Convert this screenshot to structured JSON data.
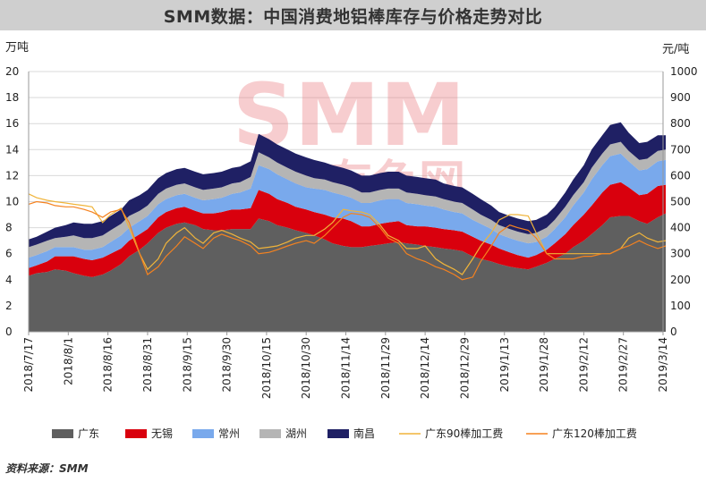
{
  "title": "SMM数据：中国消费地铝棒库存与价格走势对比",
  "source": "资料来源：SMM",
  "watermark": {
    "brand": "SMM",
    "cn": "上海有色网"
  },
  "chart_data": {
    "type": "area",
    "stacked": true,
    "left_axis": {
      "unit": "万吨",
      "min": 0,
      "max": 20,
      "step": 2
    },
    "right_axis": {
      "unit": "元/吨",
      "min": 0,
      "max": 1000,
      "step": 100
    },
    "x_tick_labels": [
      "2018/7/17",
      "2018/8/1",
      "2018/8/16",
      "2018/8/31",
      "2018/9/15",
      "2018/9/30",
      "2018/10/15",
      "2018/10/30",
      "2018/11/14",
      "2018/11/29",
      "2018/12/14",
      "2018/12/29",
      "2019/1/13",
      "2019/1/28",
      "2019/2/12",
      "2019/2/27",
      "2019/3/14"
    ],
    "x_dates": [
      "2018/7/17",
      "2018/7/20",
      "2018/7/24",
      "2018/7/27",
      "2018/7/31",
      "2018/8/3",
      "2018/8/7",
      "2018/8/10",
      "2018/8/14",
      "2018/8/17",
      "2018/8/21",
      "2018/8/24",
      "2018/8/28",
      "2018/8/31",
      "2018/9/4",
      "2018/9/7",
      "2018/9/11",
      "2018/9/14",
      "2018/9/18",
      "2018/9/21",
      "2018/9/25",
      "2018/9/28",
      "2018/10/2",
      "2018/10/5",
      "2018/10/9",
      "2018/10/12",
      "2018/10/16",
      "2018/10/19",
      "2018/10/23",
      "2018/10/26",
      "2018/10/30",
      "2018/11/2",
      "2018/11/6",
      "2018/11/9",
      "2018/11/13",
      "2018/11/16",
      "2018/11/20",
      "2018/11/23",
      "2018/11/27",
      "2018/11/30",
      "2018/12/4",
      "2018/12/7",
      "2018/12/11",
      "2018/12/14",
      "2018/12/18",
      "2018/12/21",
      "2018/12/25",
      "2018/12/28",
      "2019/1/1",
      "2019/1/4",
      "2019/1/8",
      "2019/1/11",
      "2019/1/15",
      "2019/1/18",
      "2019/1/22",
      "2019/1/25",
      "2019/1/29",
      "2019/2/1",
      "2019/2/5",
      "2019/2/8",
      "2019/2/12",
      "2019/2/15",
      "2019/2/19",
      "2019/2/22",
      "2019/2/26",
      "2019/3/1",
      "2019/3/5",
      "2019/3/8",
      "2019/3/12",
      "2019/3/15"
    ],
    "series": [
      {
        "name": "广东",
        "kind": "area",
        "axis": "left",
        "color": "#5f5f5f",
        "values": [
          4.3,
          4.5,
          4.6,
          4.8,
          4.7,
          4.5,
          4.3,
          4.2,
          4.4,
          4.7,
          5.2,
          5.8,
          6.3,
          6.8,
          7.6,
          8.0,
          8.3,
          8.4,
          8.2,
          7.9,
          7.8,
          7.8,
          7.9,
          7.9,
          7.9,
          8.7,
          8.5,
          8.2,
          8.0,
          7.8,
          7.6,
          7.4,
          7.1,
          6.8,
          6.6,
          6.5,
          6.5,
          6.6,
          6.7,
          6.8,
          6.9,
          6.8,
          6.7,
          6.6,
          6.5,
          6.4,
          6.3,
          6.2,
          5.8,
          5.6,
          5.4,
          5.2,
          5.0,
          4.9,
          4.8,
          5.0,
          5.3,
          5.6,
          6.0,
          6.5,
          7.0,
          7.5,
          8.2,
          8.8,
          8.9,
          8.9,
          8.5,
          8.3,
          8.8,
          9.1
        ]
      },
      {
        "name": "无锡",
        "kind": "area",
        "axis": "left",
        "color": "#d9000d",
        "values": [
          0.6,
          0.6,
          0.8,
          1.0,
          1.1,
          1.3,
          1.3,
          1.3,
          1.3,
          1.3,
          1.2,
          1.2,
          1.2,
          1.1,
          1.2,
          1.2,
          1.2,
          1.2,
          1.1,
          1.2,
          1.3,
          1.4,
          1.5,
          1.5,
          1.6,
          2.2,
          2.1,
          2.0,
          1.9,
          1.8,
          1.8,
          1.8,
          1.9,
          2.0,
          2.1,
          2.0,
          1.6,
          1.5,
          1.6,
          1.6,
          1.6,
          1.4,
          1.4,
          1.5,
          1.5,
          1.5,
          1.5,
          1.5,
          1.5,
          1.4,
          1.3,
          1.2,
          1.1,
          1.0,
          0.9,
          0.9,
          1.0,
          1.2,
          1.5,
          1.7,
          2.0,
          2.2,
          2.5,
          2.5,
          2.6,
          2.2,
          2.0,
          2.3,
          2.4,
          2.2
        ]
      },
      {
        "name": "常州",
        "kind": "area",
        "axis": "left",
        "color": "#79a9ec",
        "values": [
          0.8,
          0.8,
          0.8,
          0.7,
          0.7,
          0.7,
          0.7,
          0.8,
          0.8,
          0.9,
          1.0,
          1.0,
          1.0,
          1.0,
          1.0,
          1.0,
          1.0,
          1.0,
          1.0,
          1.0,
          1.1,
          1.1,
          1.2,
          1.3,
          1.5,
          1.9,
          1.9,
          1.9,
          1.8,
          1.8,
          1.7,
          1.8,
          1.9,
          1.9,
          1.8,
          1.8,
          1.8,
          1.8,
          1.8,
          1.8,
          1.7,
          1.7,
          1.7,
          1.6,
          1.6,
          1.5,
          1.4,
          1.4,
          1.3,
          1.3,
          1.2,
          1.1,
          1.1,
          1.1,
          1.1,
          1.0,
          1.0,
          1.1,
          1.3,
          1.5,
          1.7,
          2.0,
          2.1,
          2.2,
          2.2,
          2.0,
          1.9,
          1.9,
          1.9,
          1.9
        ]
      },
      {
        "name": "湖州",
        "kind": "area",
        "axis": "left",
        "color": "#b5b5b5",
        "values": [
          0.8,
          0.8,
          0.8,
          0.7,
          0.8,
          0.9,
          0.9,
          0.9,
          0.9,
          0.9,
          0.9,
          0.9,
          0.8,
          0.8,
          0.8,
          0.8,
          0.8,
          0.8,
          0.8,
          0.8,
          0.8,
          0.8,
          0.8,
          0.8,
          0.9,
          1.0,
          0.9,
          0.9,
          0.9,
          0.9,
          0.9,
          0.8,
          0.8,
          0.8,
          0.8,
          0.8,
          0.8,
          0.8,
          0.8,
          0.8,
          0.8,
          0.8,
          0.8,
          0.8,
          0.8,
          0.8,
          0.8,
          0.8,
          0.8,
          0.7,
          0.7,
          0.7,
          0.7,
          0.7,
          0.7,
          0.7,
          0.7,
          0.7,
          0.8,
          0.8,
          0.8,
          0.9,
          0.9,
          0.9,
          0.9,
          0.8,
          0.8,
          0.8,
          0.8,
          0.8
        ]
      },
      {
        "name": "南昌",
        "kind": "area",
        "axis": "left",
        "color": "#1f2064",
        "values": [
          0.6,
          0.6,
          0.7,
          0.8,
          0.9,
          1.0,
          1.1,
          1.1,
          1.1,
          1.1,
          1.1,
          1.2,
          1.2,
          1.2,
          1.2,
          1.2,
          1.2,
          1.2,
          1.2,
          1.2,
          1.2,
          1.2,
          1.2,
          1.2,
          1.2,
          1.4,
          1.4,
          1.4,
          1.4,
          1.4,
          1.4,
          1.4,
          1.3,
          1.3,
          1.3,
          1.3,
          1.3,
          1.3,
          1.3,
          1.3,
          1.3,
          1.3,
          1.3,
          1.3,
          1.3,
          1.2,
          1.2,
          1.2,
          1.2,
          1.2,
          1.1,
          1.0,
          1.0,
          1.0,
          1.0,
          1.0,
          1.0,
          1.0,
          1.1,
          1.2,
          1.3,
          1.4,
          1.4,
          1.5,
          1.5,
          1.4,
          1.3,
          1.3,
          1.2,
          1.1
        ]
      },
      {
        "name": "广东90棒加工费",
        "kind": "line",
        "axis": "right",
        "color": "#f0b43a",
        "values": [
          530,
          515,
          505,
          500,
          495,
          490,
          485,
          480,
          420,
          450,
          475,
          400,
          300,
          240,
          280,
          340,
          380,
          400,
          360,
          340,
          380,
          390,
          375,
          360,
          345,
          320,
          325,
          330,
          345,
          360,
          370,
          370,
          395,
          420,
          470,
          465,
          460,
          450,
          410,
          370,
          350,
          320,
          320,
          330,
          280,
          260,
          240,
          220,
          280,
          330,
          380,
          430,
          450,
          450,
          445,
          380,
          300,
          300,
          300,
          300,
          300,
          300,
          300,
          300,
          320,
          360,
          380,
          360,
          345,
          350
        ]
      },
      {
        "name": "广东120棒加工费",
        "kind": "line",
        "axis": "right",
        "color": "#f5821f",
        "values": [
          490,
          500,
          495,
          485,
          480,
          480,
          470,
          460,
          440,
          460,
          470,
          420,
          300,
          220,
          250,
          290,
          330,
          365,
          340,
          320,
          360,
          375,
          360,
          350,
          330,
          300,
          305,
          315,
          330,
          340,
          350,
          340,
          370,
          400,
          440,
          455,
          450,
          440,
          400,
          360,
          340,
          300,
          280,
          270,
          250,
          240,
          220,
          200,
          210,
          270,
          330,
          380,
          410,
          400,
          390,
          360,
          300,
          280,
          280,
          280,
          290,
          290,
          300,
          300,
          320,
          330,
          350,
          335,
          320,
          330
        ]
      }
    ]
  }
}
